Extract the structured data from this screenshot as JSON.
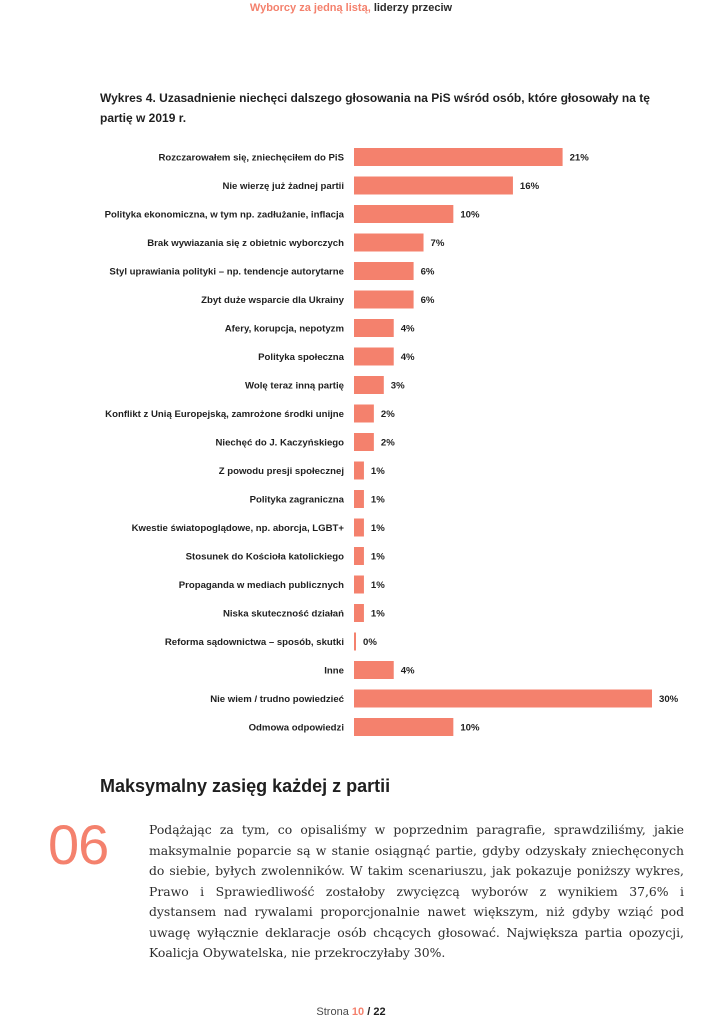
{
  "header": {
    "accent_text": "Wyborcy za jedną listą,",
    "dark_text": "liderzy przeciw"
  },
  "colors": {
    "accent": "#f4816d",
    "text": "#1f1f1f"
  },
  "chart_data": {
    "type": "bar",
    "orientation": "horizontal",
    "title": "Wykres 4. Uzasadnienie niechęci dalszego głosowania na PiS wśród osób, które głosowały na tę partię w 2019 r.",
    "xlabel": "",
    "ylabel": "",
    "categories": [
      "Rozczarowałem się, zniechęciłem do PiS",
      "Nie wierzę już żadnej partii",
      "Polityka ekonomiczna, w tym np. zadłużanie, inflacja",
      "Brak wywiazania się z obietnic wyborczych",
      "Styl uprawiania polityki – np. tendencje autorytarne",
      "Zbyt duże wsparcie dla Ukrainy",
      "Afery, korupcja, nepotyzm",
      "Polityka społeczna",
      "Wolę teraz inną partię",
      "Konflikt z Unią Europejską, zamrożone środki unijne",
      "Niechęć do J. Kaczyńskiego",
      "Z powodu presji społecznej",
      "Polityka zagraniczna",
      "Kwestie światopoglądowe, np. aborcja, LGBT+",
      "Stosunek do Kościoła katolickiego",
      "Propaganda w mediach publicznych",
      "Niska skuteczność działań",
      "Reforma sądownictwa – sposób, skutki",
      "Inne",
      "Nie wiem / trudno powiedzieć",
      "Odmowa odpowiedzi"
    ],
    "values": [
      21,
      16,
      10,
      7,
      6,
      6,
      4,
      4,
      3,
      2,
      2,
      1,
      1,
      1,
      1,
      1,
      1,
      0,
      4,
      30,
      10
    ],
    "value_labels": [
      "21%",
      "16%",
      "10%",
      "7%",
      "6%",
      "6%",
      "4%",
      "4%",
      "3%",
      "2%",
      "2%",
      "1%",
      "1%",
      "1%",
      "1%",
      "1%",
      "1%",
      "0%",
      "4%",
      "30%",
      "10%"
    ],
    "xlim": [
      0,
      30
    ],
    "grid": false,
    "bar_color": "#f4816d"
  },
  "section": {
    "heading": "Maksymalny zasięg każdej z partii",
    "number": "06",
    "paragraph": "Podążając za tym, co opisaliśmy w poprzednim paragrafie, sprawdziliśmy, jakie maksymalnie poparcie są w stanie osiągnąć partie, gdyby odzyskały zniechęconych do siebie, byłych zwolenników. W takim scenariuszu, jak pokazuje poniższy wykres, Prawo i Sprawiedliwość zostałoby zwycięzcą wyborów z wynikiem 37,6% i dystansem nad rywalami proporcjonalnie nawet większym, niż gdyby wziąć pod uwagę wyłącznie deklaracje osób chcących głosować. Największa partia opozycji, Koalicja Obywatelska, nie przekroczyłaby 30%."
  },
  "footer": {
    "label": "Strona",
    "page": "10",
    "separator": "/",
    "total": "22"
  }
}
